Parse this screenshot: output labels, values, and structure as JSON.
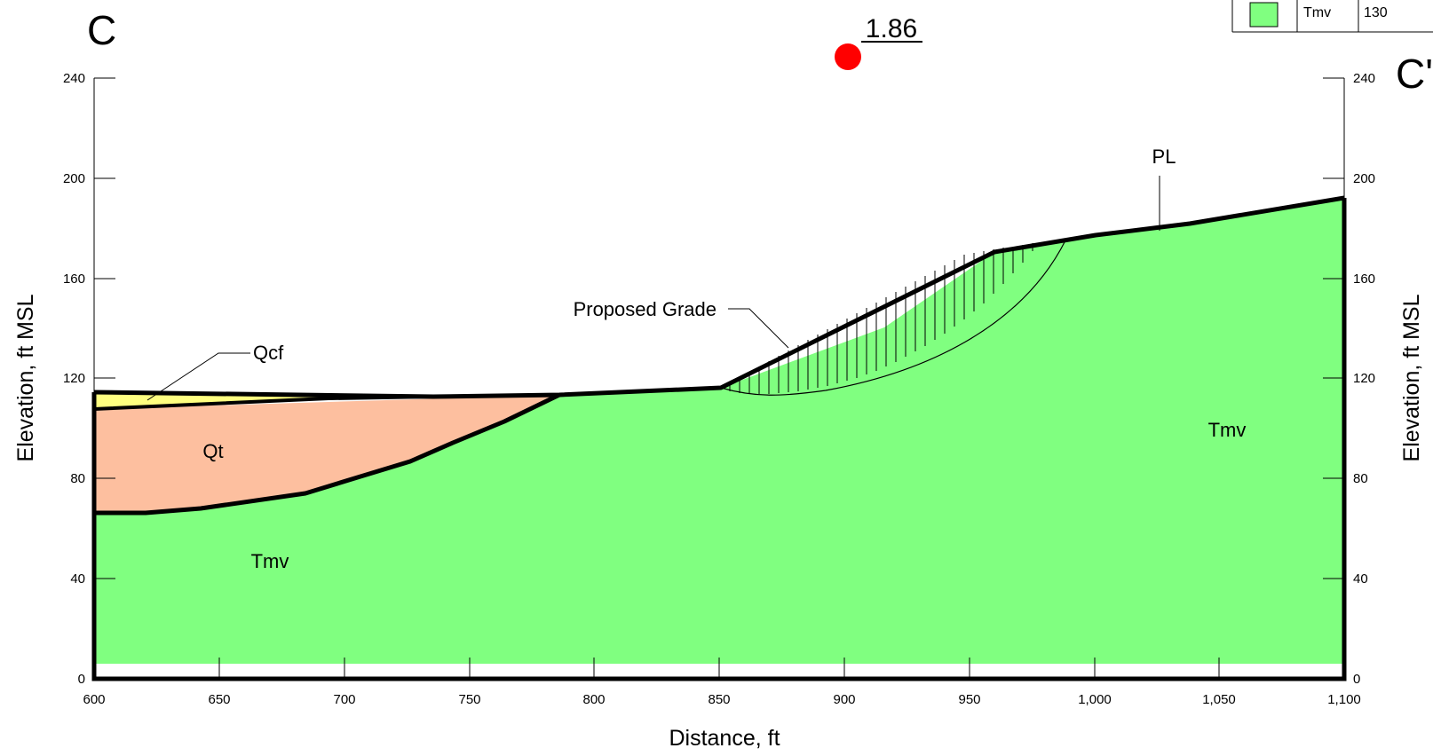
{
  "section": {
    "start_label": "C",
    "end_label": "C'"
  },
  "factor_of_safety": "1.86",
  "axes": {
    "x_title": "Distance, ft",
    "y_title_left": "Elevation, ft MSL",
    "y_title_right": "Elevation, ft MSL",
    "x_ticks": [
      "600",
      "650",
      "700",
      "750",
      "800",
      "850",
      "900",
      "950",
      "1,000",
      "1,050",
      "1,100"
    ],
    "y_ticks": [
      "0",
      "40",
      "80",
      "120",
      "160",
      "200",
      "240"
    ]
  },
  "units": {
    "Tmv": "Tmv",
    "Qt": "Qt",
    "Qcf": "Qcf"
  },
  "callouts": {
    "proposed_grade": "Proposed Grade",
    "pl": "PL"
  },
  "legend": {
    "name": "Tmv",
    "value": "130"
  },
  "colors": {
    "tmv": "#80ff80",
    "qt": "#fdbf9f",
    "qcf": "#ffff80",
    "marker": "#ff0000"
  }
}
